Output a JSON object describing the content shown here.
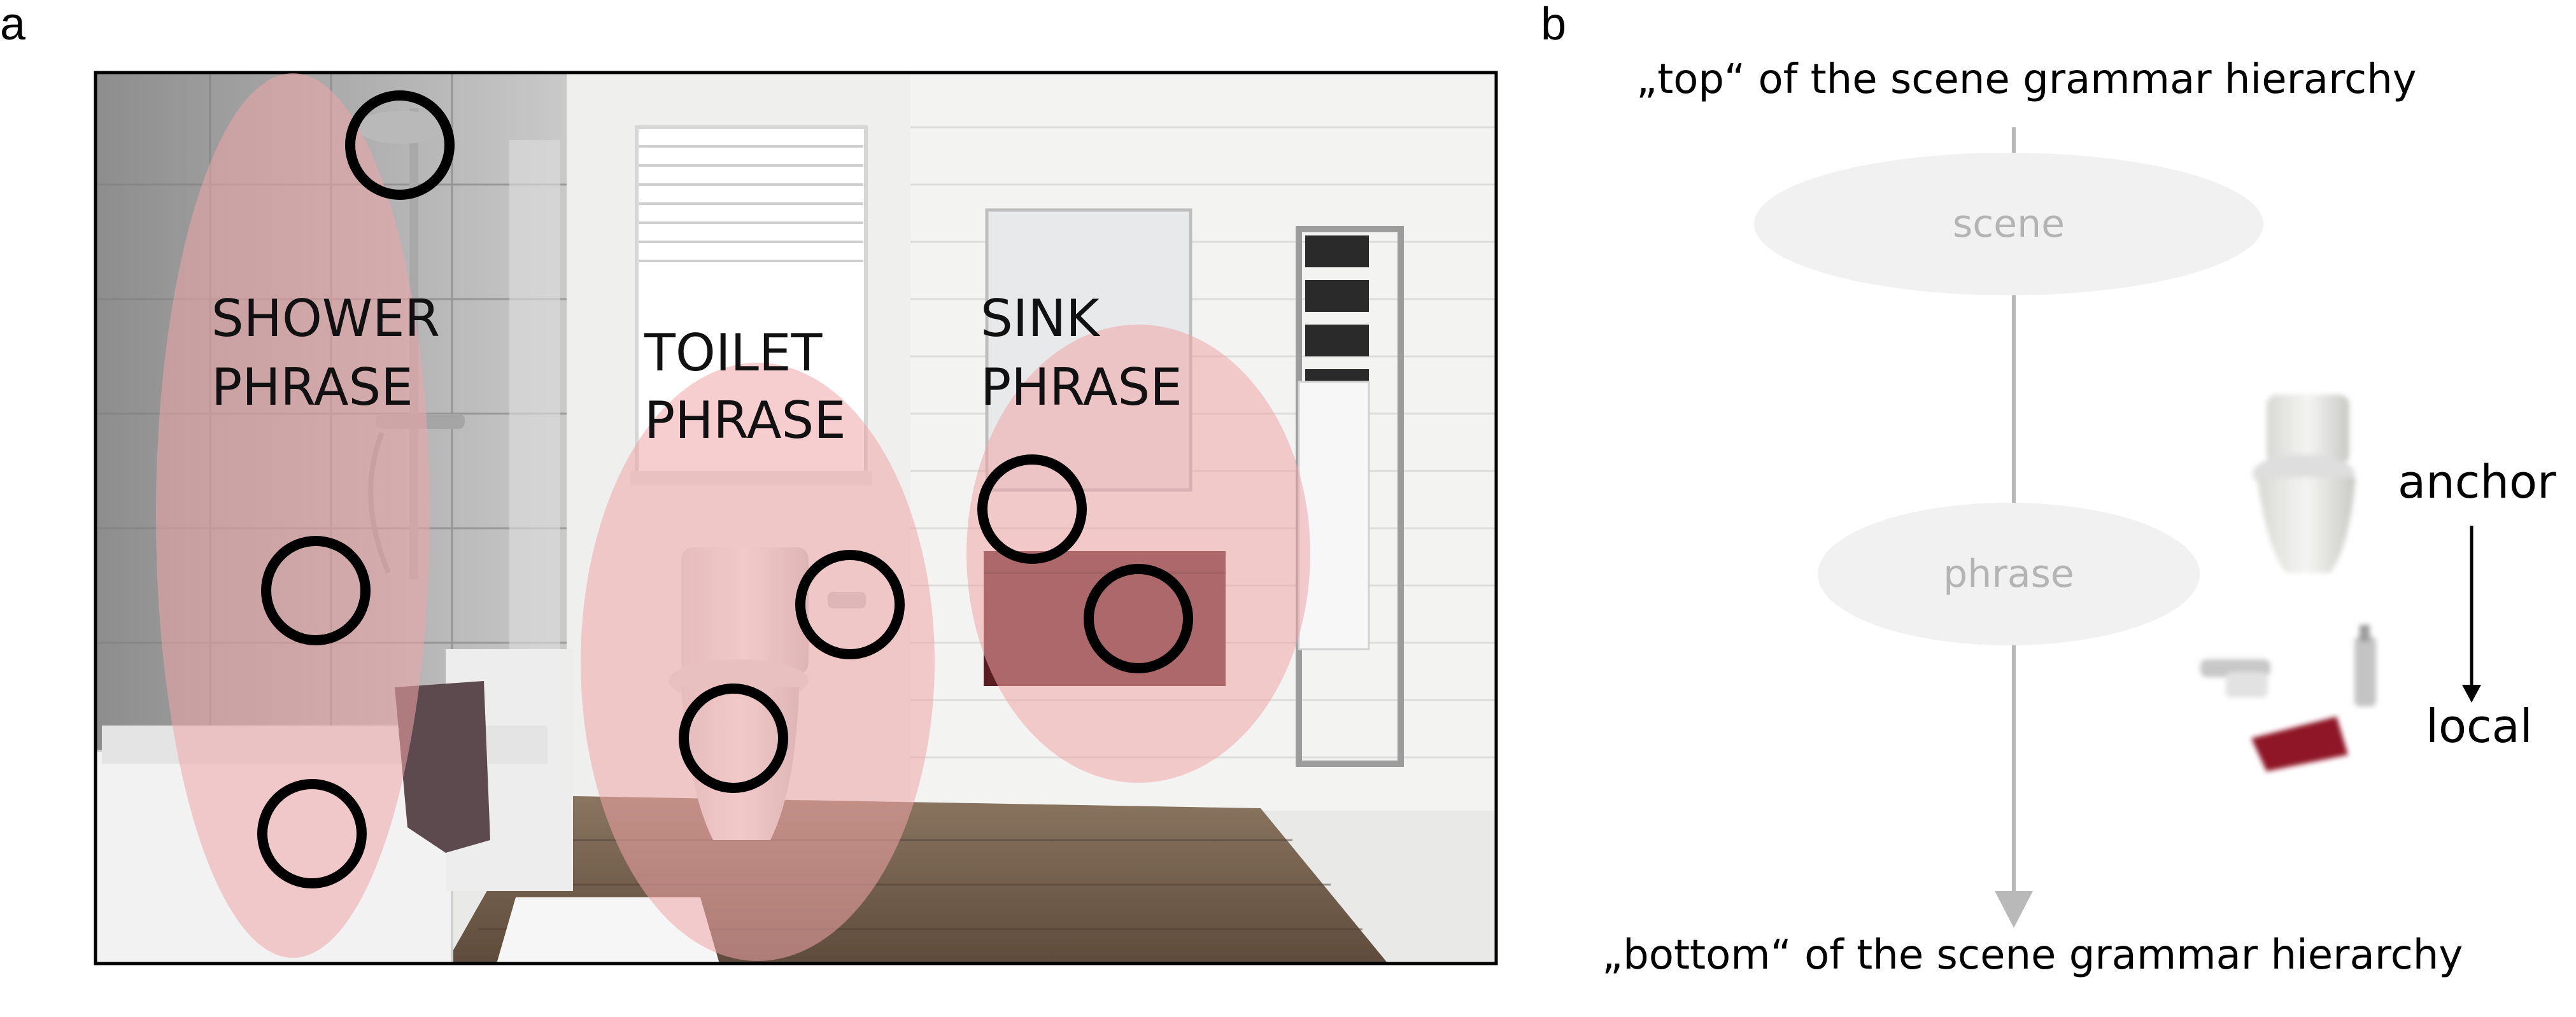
{
  "panel_a": {
    "label": "a",
    "phrases": [
      {
        "line1": "SHOWER",
        "line2": "PHRASE"
      },
      {
        "line1": "TOILET",
        "line2": "PHRASE"
      },
      {
        "line1": "SINK",
        "line2": "PHRASE"
      }
    ]
  },
  "panel_b": {
    "label": "b",
    "top_text": "„top“ of the scene grammar hierarchy",
    "bottom_text": "„bottom“ of the scene grammar hierarchy",
    "node_scene": "scene",
    "node_phrase": "phrase",
    "anchor_label": "anchor",
    "local_label": "local"
  },
  "colors": {
    "phrase_overlay": "#f0a6a8",
    "circle": "#000000",
    "arrow": "#b9b9b9",
    "node_fill": "#f1f1f1",
    "cabinet": "#5a1e22",
    "bath_mat": "#8e1626"
  }
}
